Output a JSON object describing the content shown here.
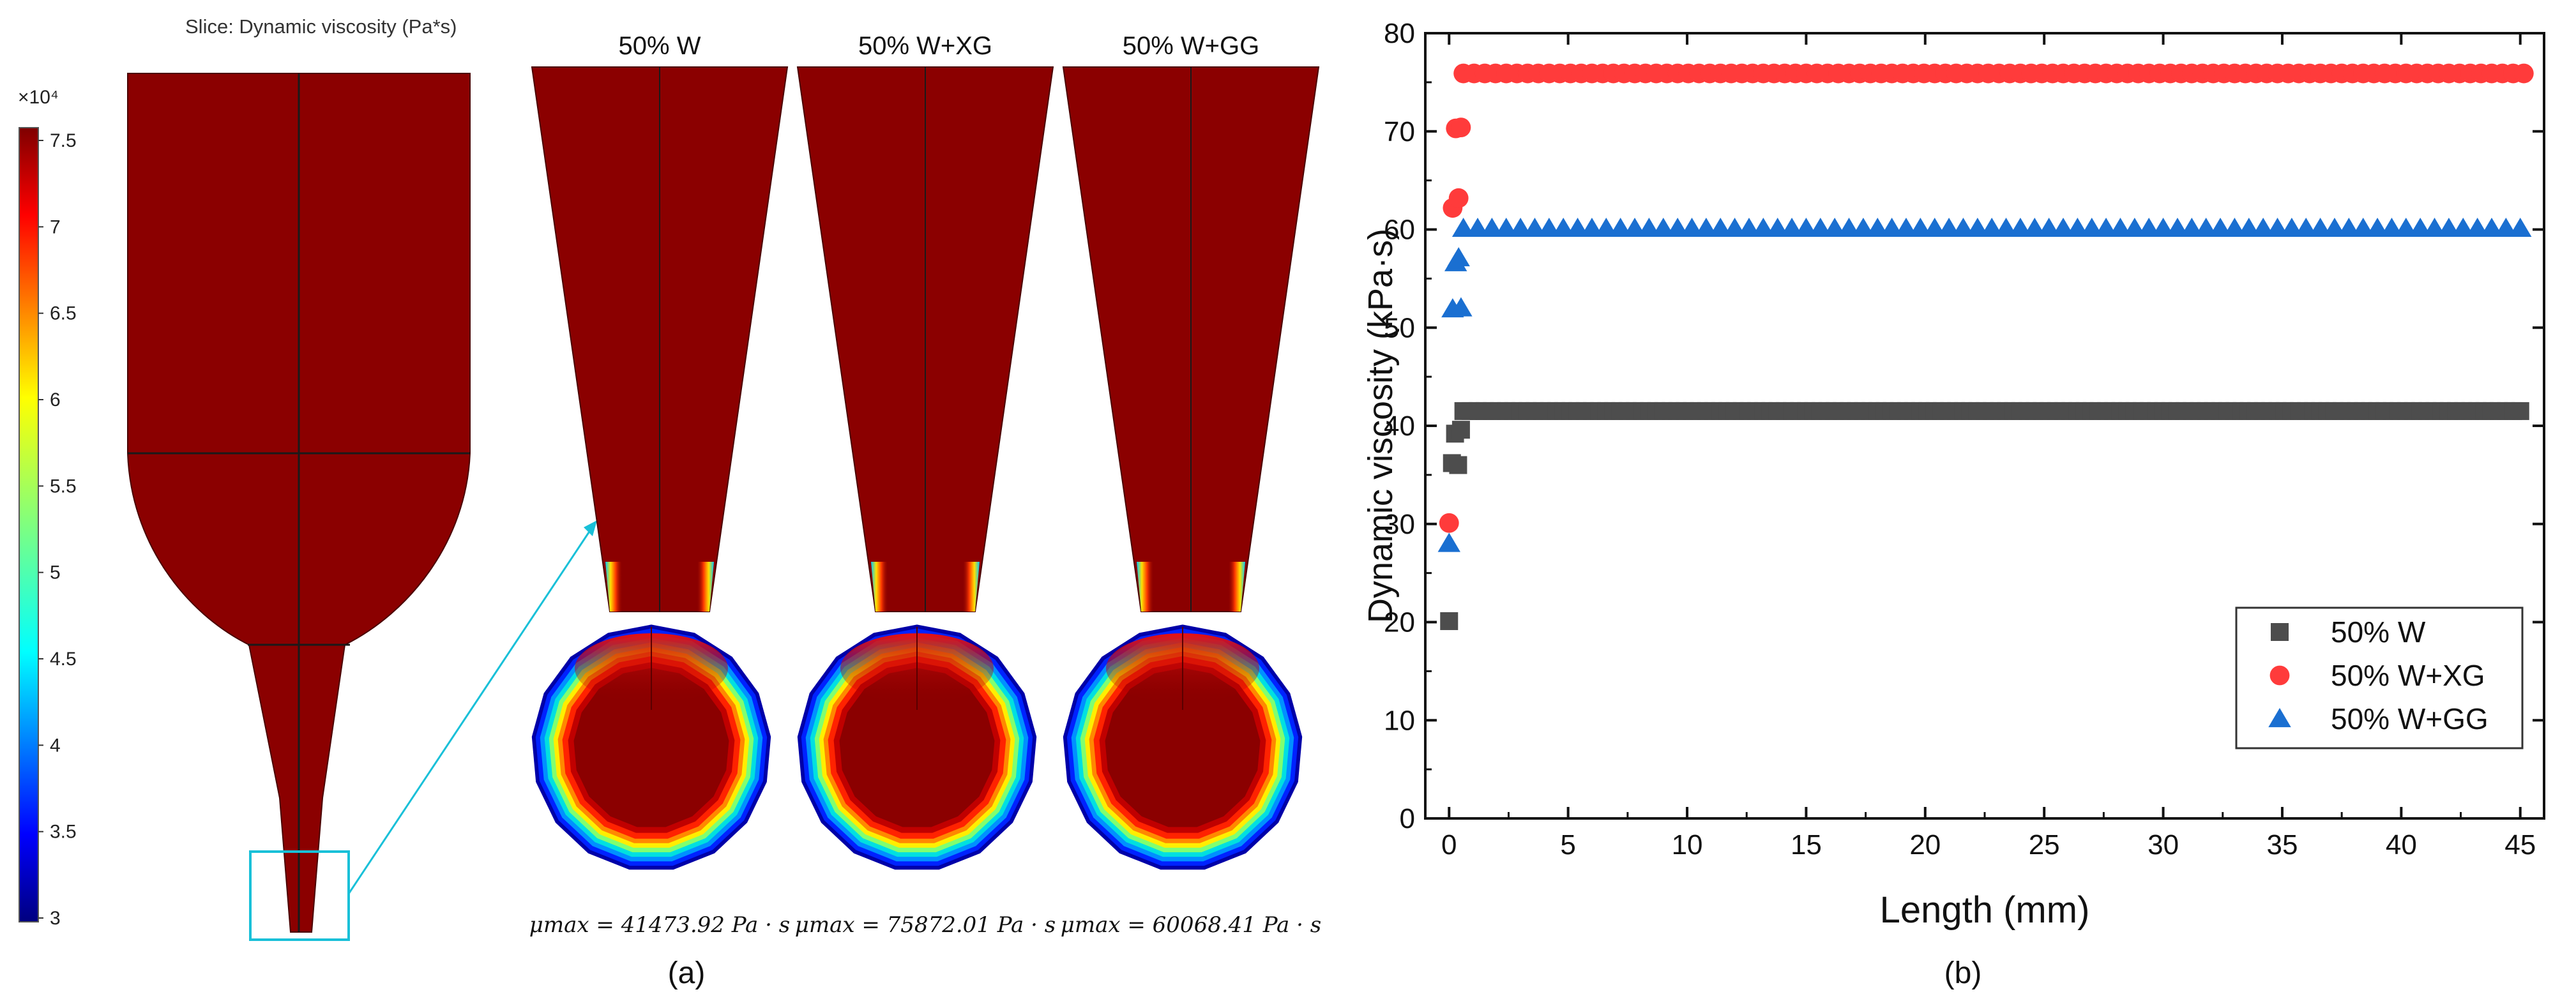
{
  "panel_a": {
    "slice_title": "Slice: Dynamic viscosity (Pa*s)",
    "colorbar": {
      "exponent": "×10⁴",
      "ticks": [
        "7.5",
        "7",
        "6.5",
        "6",
        "5.5",
        "5",
        "4.5",
        "4",
        "3.5",
        "3"
      ],
      "tick_values": [
        7.5,
        7,
        6.5,
        6,
        5.5,
        5,
        4.5,
        4,
        3.5,
        3
      ],
      "range": [
        3,
        7.5
      ]
    },
    "sections": [
      {
        "title": "50% W",
        "mu_max": "μmax = 41473.92 Pa · s"
      },
      {
        "title": "50% W+XG",
        "mu_max": "μmax = 75872.01 Pa · s"
      },
      {
        "title": "50% W+GG",
        "mu_max": "μmax = 60068.41 Pa · s"
      }
    ],
    "caption": "(a)",
    "colors": {
      "fluid": "#8b0000",
      "highlight": "#19c0d8"
    }
  },
  "panel_b": {
    "caption": "(b)",
    "chart_data": {
      "type": "scatter",
      "title": "",
      "xlabel": "Length (mm)",
      "ylabel": "Dynamic viscosity (kPa·s)",
      "xlim": [
        -1,
        46
      ],
      "ylim": [
        0,
        80
      ],
      "xticks": [
        0,
        5,
        10,
        15,
        20,
        25,
        30,
        35,
        40,
        45
      ],
      "yticks": [
        0,
        10,
        20,
        30,
        40,
        50,
        60,
        70,
        80
      ],
      "grid": false,
      "legend_position": "bottom-right",
      "series": [
        {
          "name": "50% W",
          "marker": "square",
          "color": "#4d4d4d",
          "early_points": [
            [
              0.0,
              20.1
            ],
            [
              0.12,
              36.2
            ],
            [
              0.25,
              39.2
            ],
            [
              0.38,
              36.0
            ],
            [
              0.5,
              39.6
            ]
          ],
          "plateau": {
            "x_start": 0.6,
            "x_end": 45.2,
            "step": 0.3,
            "y": 41.5
          }
        },
        {
          "name": "50% W+XG",
          "marker": "circle",
          "color": "#ff3b3b",
          "early_points": [
            [
              0.0,
              30.1
            ],
            [
              0.15,
              62.2
            ],
            [
              0.28,
              70.3
            ],
            [
              0.4,
              63.2
            ],
            [
              0.5,
              70.4
            ]
          ],
          "plateau": {
            "x_start": 0.6,
            "x_end": 45.2,
            "step": 0.45,
            "y": 75.9
          }
        },
        {
          "name": "50% W+GG",
          "marker": "triangle",
          "color": "#1a6fd1",
          "early_points": [
            [
              0.0,
              28.0
            ],
            [
              0.15,
              51.9
            ],
            [
              0.28,
              56.6
            ],
            [
              0.4,
              57.1
            ],
            [
              0.5,
              52.0
            ]
          ],
          "plateau": {
            "x_start": 0.6,
            "x_end": 45.2,
            "step": 0.6,
            "y": 60.1
          }
        }
      ]
    }
  }
}
